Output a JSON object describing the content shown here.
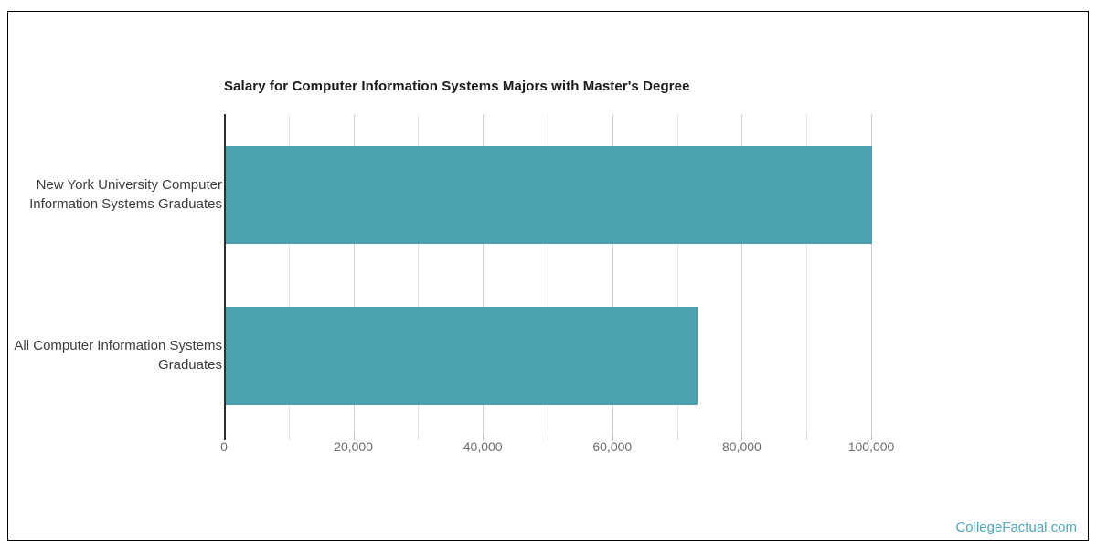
{
  "chart_data": {
    "type": "bar",
    "orientation": "horizontal",
    "title": "Salary for Computer Information Systems Majors with Master's Degree",
    "categories": [
      [
        "New York University Computer",
        "Information Systems Graduates"
      ],
      [
        "All Computer Information Systems",
        "Graduates"
      ]
    ],
    "values": [
      100000,
      73000
    ],
    "xlabel": "",
    "ylabel": "",
    "xlim": [
      0,
      100000
    ],
    "xticks": {
      "values": [
        0,
        20000,
        40000,
        60000,
        80000,
        100000
      ],
      "labels": [
        "0",
        "20,000",
        "40,000",
        "60,000",
        "80,000",
        "100,000"
      ]
    },
    "minor_grid_step": 10000,
    "grid": true,
    "legend": false,
    "bar_color": "#4AA1AF"
  },
  "watermark": {
    "text": "CollegeFactual.com",
    "color": "#4EA7BD"
  }
}
